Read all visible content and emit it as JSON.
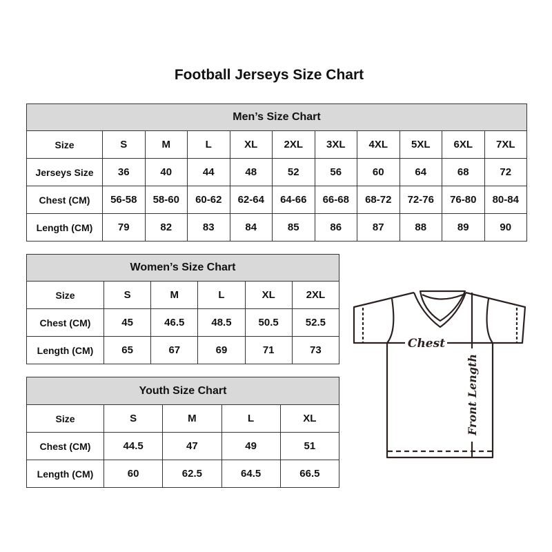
{
  "title": "Football Jerseys Size Chart",
  "mens": {
    "title": "Men’s Size Chart",
    "rows": [
      {
        "label": "Size",
        "values": [
          "S",
          "M",
          "L",
          "XL",
          "2XL",
          "3XL",
          "4XL",
          "5XL",
          "6XL",
          "7XL"
        ]
      },
      {
        "label": "Jerseys Size",
        "values": [
          "36",
          "40",
          "44",
          "48",
          "52",
          "56",
          "60",
          "64",
          "68",
          "72"
        ]
      },
      {
        "label": "Chest (CM)",
        "values": [
          "56-58",
          "58-60",
          "60-62",
          "62-64",
          "64-66",
          "66-68",
          "68-72",
          "72-76",
          "76-80",
          "80-84"
        ]
      },
      {
        "label": "Length (CM)",
        "values": [
          "79",
          "82",
          "83",
          "84",
          "85",
          "86",
          "87",
          "88",
          "89",
          "90"
        ]
      }
    ]
  },
  "womens": {
    "title": "Women’s Size Chart",
    "rows": [
      {
        "label": "Size",
        "values": [
          "S",
          "M",
          "L",
          "XL",
          "2XL"
        ]
      },
      {
        "label": "Chest (CM)",
        "values": [
          "45",
          "46.5",
          "48.5",
          "50.5",
          "52.5"
        ]
      },
      {
        "label": "Length (CM)",
        "values": [
          "65",
          "67",
          "69",
          "71",
          "73"
        ]
      }
    ]
  },
  "youth": {
    "title": "Youth Size Chart",
    "rows": [
      {
        "label": "Size",
        "values": [
          "S",
          "M",
          "L",
          "XL"
        ]
      },
      {
        "label": "Chest (CM)",
        "values": [
          "44.5",
          "47",
          "49",
          "51"
        ]
      },
      {
        "label": "Length (CM)",
        "values": [
          "60",
          "62.5",
          "64.5",
          "66.5"
        ]
      }
    ]
  },
  "diagram": {
    "chest_label": "Chest",
    "length_label": "Front Length"
  },
  "colors": {
    "header_bg": "#d9d9d9",
    "border": "#333333",
    "line": "#2b2220"
  }
}
